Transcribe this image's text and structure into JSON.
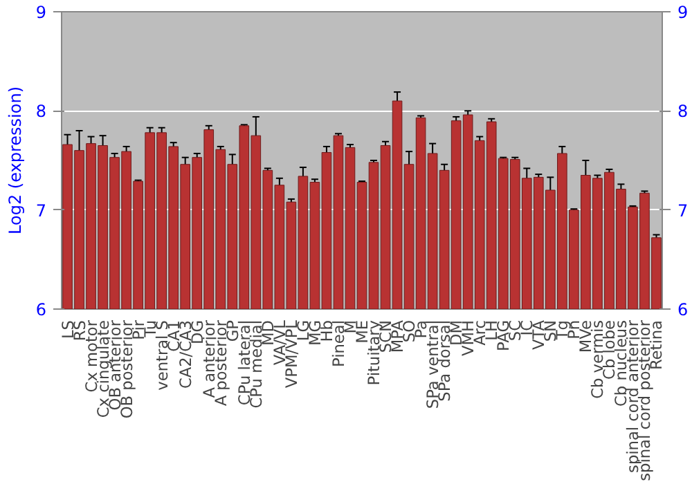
{
  "chart_data": {
    "type": "bar",
    "ylabel": "Log2 (expression)",
    "categories": [
      "LS",
      "RS",
      "Cx motor",
      "Cx cingulate",
      "OB anterior",
      "OB posterior",
      "Pir",
      "Tu",
      "ventral S",
      "CA1",
      "CA2/CA3",
      "DG",
      "A anterior",
      "A posterior",
      "GP",
      "CPu lateral",
      "CPu medial",
      "MD",
      "VA/VL",
      "VPM/VPL",
      "LG",
      "MG",
      "Hb",
      "Pineal",
      "M",
      "ME",
      "Pituitary",
      "SCN",
      "MPA",
      "SO",
      "Pa",
      "SPa ventral",
      "SPa dorsal",
      "DM",
      "VMH",
      "Arc",
      "LH",
      "PAG",
      "SC",
      "IC",
      "VTA",
      "SN",
      "Tg",
      "Pn",
      "MVe",
      "Cb vermis",
      "Cb lobe",
      "Cb nucleus",
      "spinal cord anterior",
      "spinal cord posterior",
      "Retina"
    ],
    "values": [
      7.66,
      7.6,
      7.67,
      7.65,
      7.53,
      7.59,
      7.29,
      7.78,
      7.78,
      7.64,
      7.46,
      7.53,
      7.81,
      7.61,
      7.46,
      7.85,
      7.75,
      7.4,
      7.25,
      7.08,
      7.34,
      7.28,
      7.58,
      7.75,
      7.63,
      7.28,
      7.48,
      7.65,
      8.1,
      7.46,
      7.93,
      7.57,
      7.4,
      7.9,
      7.96,
      7.7,
      7.89,
      7.52,
      7.51,
      7.32,
      7.33,
      7.2,
      7.57,
      7.0,
      7.35,
      7.32,
      7.38,
      7.21,
      7.03,
      7.17,
      6.72
    ],
    "errors": [
      0.1,
      0.2,
      0.07,
      0.1,
      0.04,
      0.05,
      0.01,
      0.05,
      0.05,
      0.04,
      0.07,
      0.04,
      0.04,
      0.03,
      0.1,
      0.01,
      0.19,
      0.02,
      0.07,
      0.03,
      0.09,
      0.03,
      0.06,
      0.02,
      0.03,
      0.01,
      0.02,
      0.04,
      0.09,
      0.13,
      0.02,
      0.1,
      0.06,
      0.04,
      0.04,
      0.04,
      0.03,
      0.01,
      0.02,
      0.1,
      0.03,
      0.13,
      0.07,
      0.01,
      0.15,
      0.03,
      0.03,
      0.05,
      0.01,
      0.02,
      0.03
    ],
    "color": "#b83232",
    "ylim": [
      6,
      9
    ],
    "yticks": [
      6,
      7,
      8,
      9
    ],
    "y2lim": [
      6,
      9
    ],
    "y2ticks": [
      6,
      7,
      8,
      9
    ],
    "grid": "y"
  }
}
